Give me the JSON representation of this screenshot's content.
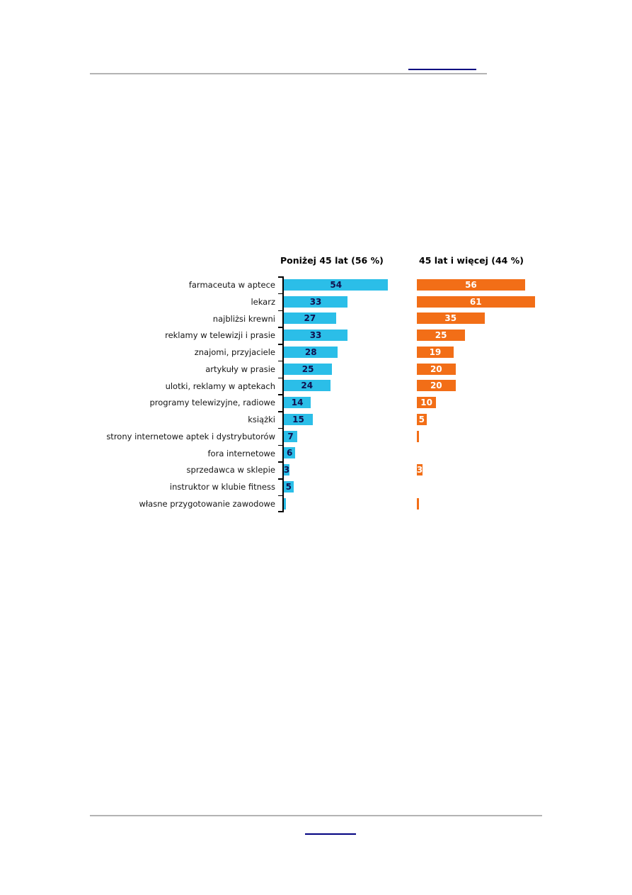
{
  "decorations": {
    "rule_color": "#b3b3b3",
    "link_underline_color": "#000080"
  },
  "chart_data": {
    "type": "bar",
    "orientation": "horizontal",
    "title": "",
    "categories": [
      "farmaceuta w aptece",
      "lekarz",
      "najbliżsi krewni",
      "reklamy w telewizji i prasie",
      "znajomi, przyjaciele",
      "artykuły w prasie",
      "ulotki, reklamy w aptekach",
      "programy telewizyjne, radiowe",
      "książki",
      "strony internetowe aptek i dystrybutorów",
      "fora internetowe",
      "sprzedawca w sklepie",
      "instruktor w klubie fitness",
      "własne przygotowanie zawodowe"
    ],
    "series": [
      {
        "name": "Poniżej 45 lat (56 %)",
        "color": "#2bbee8",
        "value_label_color": "#10104f",
        "values": [
          54,
          33,
          27,
          33,
          28,
          25,
          24,
          14,
          15,
          7,
          6,
          3,
          5,
          1
        ]
      },
      {
        "name": "45 lat i więcej (44 %)",
        "color": "#f26e17",
        "value_label_color": "#ffffff",
        "values": [
          56,
          61,
          35,
          25,
          19,
          20,
          20,
          10,
          5,
          1,
          0,
          3,
          0,
          1
        ]
      }
    ],
    "value_axis_range": [
      0,
      65
    ],
    "grid": false,
    "legend_position": "column-headers",
    "value_labels": "inside-center, hidden when value < 2, no bar when value = 0"
  }
}
